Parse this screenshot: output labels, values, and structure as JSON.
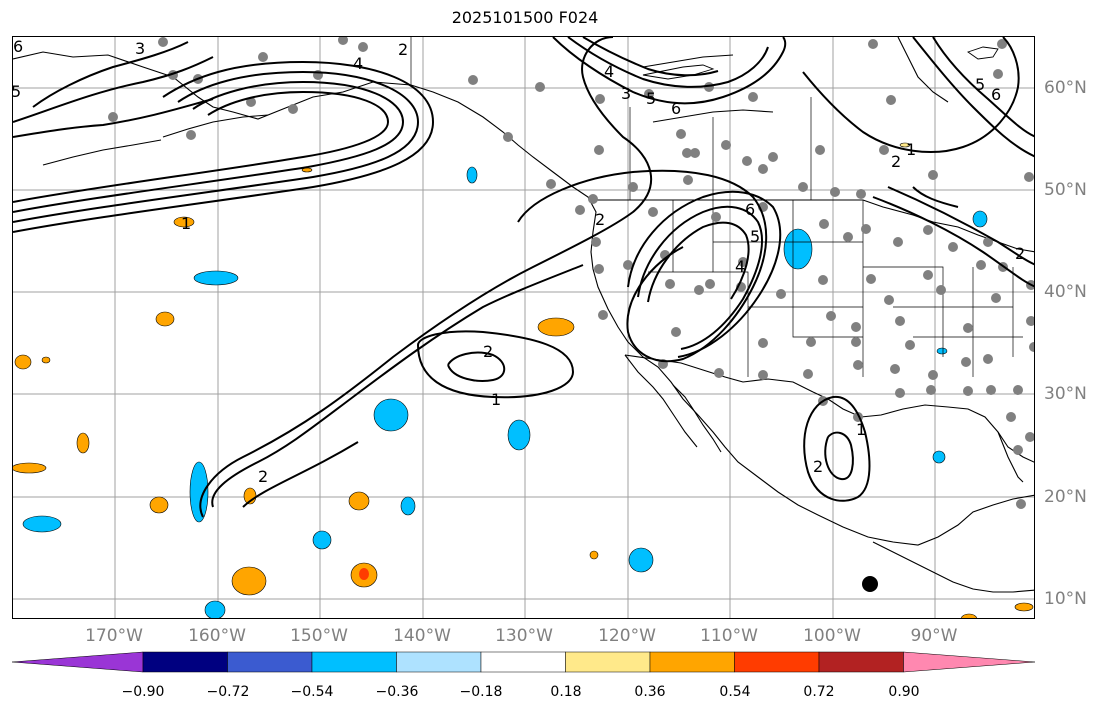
{
  "title": "2025101500 F024",
  "lon_labels": [
    "170°W",
    "160°W",
    "150°W",
    "140°W",
    "130°W",
    "120°W",
    "110°W",
    "100°W",
    "90°W"
  ],
  "lat_labels": [
    "60°N",
    "50°N",
    "40°N",
    "30°N",
    "20°N",
    "10°N"
  ],
  "colorbar": {
    "tick_labels": [
      "−0.90",
      "−0.72",
      "−0.54",
      "−0.36",
      "−0.18",
      "0.18",
      "0.36",
      "0.54",
      "0.72",
      "0.90"
    ],
    "colors": [
      "#9a35d6",
      "#000080",
      "#3b5bd0",
      "#00bfff",
      "#aee2ff",
      "#ffffff",
      "#ffe98a",
      "#ffa500",
      "#ff3c00",
      "#b22222",
      "#ff88b0"
    ]
  },
  "contour_labels": [
    "6",
    "5",
    "4",
    "3",
    "2",
    "1",
    "2",
    "6",
    "5",
    "6",
    "5",
    "4",
    "2",
    "2",
    "1",
    "2",
    "1",
    "6",
    "5",
    "4",
    "3",
    "2",
    "1",
    "2"
  ],
  "station_dot_color": "#808080",
  "station_count": 95
}
